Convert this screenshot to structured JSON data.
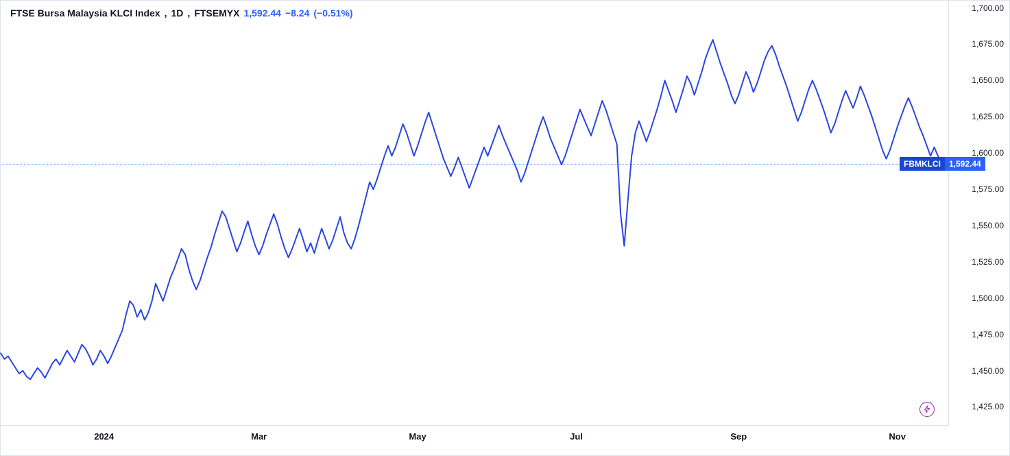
{
  "chart": {
    "type": "line",
    "title_parts": {
      "name": "FTSE Bursa Malaysia KLCI Index",
      "interval": "1D",
      "exchange": "FTSEMYX"
    },
    "last_value": "1,592.44",
    "change_abs": "−8.24",
    "change_pct": "(−0.51%)",
    "symbol_short": "FBMKLCI",
    "colors": {
      "line": "#2a46e0",
      "text": "#131722",
      "accent_blue": "#2962ff",
      "flag_symbol_bg": "#1848cc",
      "flag_value_bg": "#2962ff",
      "dotted_line": "#5b9cf6",
      "border": "#e0e3eb",
      "flash_icon": "#9b27b0",
      "background": "#ffffff"
    },
    "line_width": 2,
    "y_axis": {
      "min": 1412,
      "max": 1705,
      "ticks": [
        {
          "v": 1700,
          "label": "1,700.00"
        },
        {
          "v": 1675,
          "label": "1,675.00"
        },
        {
          "v": 1650,
          "label": "1,650.00"
        },
        {
          "v": 1625,
          "label": "1,625.00"
        },
        {
          "v": 1600,
          "label": "1,600.00"
        },
        {
          "v": 1575,
          "label": "1,575.00"
        },
        {
          "v": 1550,
          "label": "1,550.00"
        },
        {
          "v": 1525,
          "label": "1,525.00"
        },
        {
          "v": 1500,
          "label": "1,500.00"
        },
        {
          "v": 1475,
          "label": "1,475.00"
        },
        {
          "v": 1450,
          "label": "1,450.00"
        },
        {
          "v": 1425,
          "label": "1,425.00"
        }
      ],
      "label_fontsize": 12
    },
    "x_axis": {
      "min": 0,
      "max": 257,
      "ticks": [
        {
          "i": 28,
          "label": "2024"
        },
        {
          "i": 70,
          "label": "Mar"
        },
        {
          "i": 113,
          "label": "May"
        },
        {
          "i": 156,
          "label": "Jul"
        },
        {
          "i": 200,
          "label": "Sep"
        },
        {
          "i": 243,
          "label": "Nov"
        }
      ],
      "label_fontsize": 13
    },
    "last_value_numeric": 1592.44,
    "series": [
      1462,
      1458,
      1460,
      1456,
      1452,
      1448,
      1450,
      1446,
      1444,
      1448,
      1452,
      1449,
      1445,
      1450,
      1455,
      1458,
      1454,
      1459,
      1464,
      1460,
      1456,
      1462,
      1468,
      1465,
      1460,
      1454,
      1458,
      1464,
      1460,
      1455,
      1460,
      1466,
      1472,
      1478,
      1489,
      1498,
      1495,
      1487,
      1492,
      1485,
      1490,
      1498,
      1510,
      1504,
      1498,
      1506,
      1514,
      1520,
      1527,
      1534,
      1530,
      1520,
      1512,
      1506,
      1512,
      1520,
      1528,
      1535,
      1544,
      1552,
      1560,
      1556,
      1548,
      1540,
      1532,
      1538,
      1546,
      1553,
      1544,
      1536,
      1530,
      1536,
      1544,
      1551,
      1558,
      1551,
      1542,
      1534,
      1528,
      1534,
      1541,
      1548,
      1540,
      1532,
      1538,
      1531,
      1540,
      1548,
      1541,
      1534,
      1540,
      1548,
      1556,
      1545,
      1538,
      1534,
      1541,
      1550,
      1560,
      1570,
      1580,
      1575,
      1582,
      1590,
      1598,
      1605,
      1598,
      1604,
      1612,
      1620,
      1614,
      1606,
      1598,
      1605,
      1613,
      1621,
      1628,
      1620,
      1612,
      1604,
      1596,
      1590,
      1584,
      1590,
      1597,
      1590,
      1583,
      1576,
      1583,
      1590,
      1597,
      1604,
      1598,
      1605,
      1612,
      1619,
      1612,
      1606,
      1600,
      1594,
      1588,
      1580,
      1586,
      1594,
      1602,
      1610,
      1618,
      1625,
      1618,
      1610,
      1604,
      1598,
      1592,
      1598,
      1606,
      1614,
      1622,
      1630,
      1624,
      1618,
      1612,
      1620,
      1628,
      1636,
      1630,
      1622,
      1614,
      1606,
      1558,
      1536,
      1568,
      1598,
      1614,
      1622,
      1615,
      1608,
      1615,
      1623,
      1631,
      1640,
      1650,
      1643,
      1636,
      1628,
      1636,
      1644,
      1653,
      1648,
      1640,
      1648,
      1656,
      1665,
      1672,
      1678,
      1670,
      1662,
      1655,
      1648,
      1640,
      1634,
      1640,
      1648,
      1656,
      1650,
      1642,
      1648,
      1656,
      1664,
      1670,
      1674,
      1668,
      1660,
      1653,
      1646,
      1638,
      1630,
      1622,
      1628,
      1636,
      1644,
      1650,
      1644,
      1637,
      1630,
      1622,
      1614,
      1620,
      1628,
      1636,
      1643,
      1637,
      1631,
      1638,
      1646,
      1640,
      1633,
      1626,
      1618,
      1610,
      1602,
      1596,
      1602,
      1610,
      1618,
      1625,
      1632,
      1638,
      1632,
      1625,
      1618,
      1612,
      1605,
      1598,
      1604,
      1598,
      1592.44
    ]
  },
  "flash_button": {
    "color": "#9b27b0"
  }
}
